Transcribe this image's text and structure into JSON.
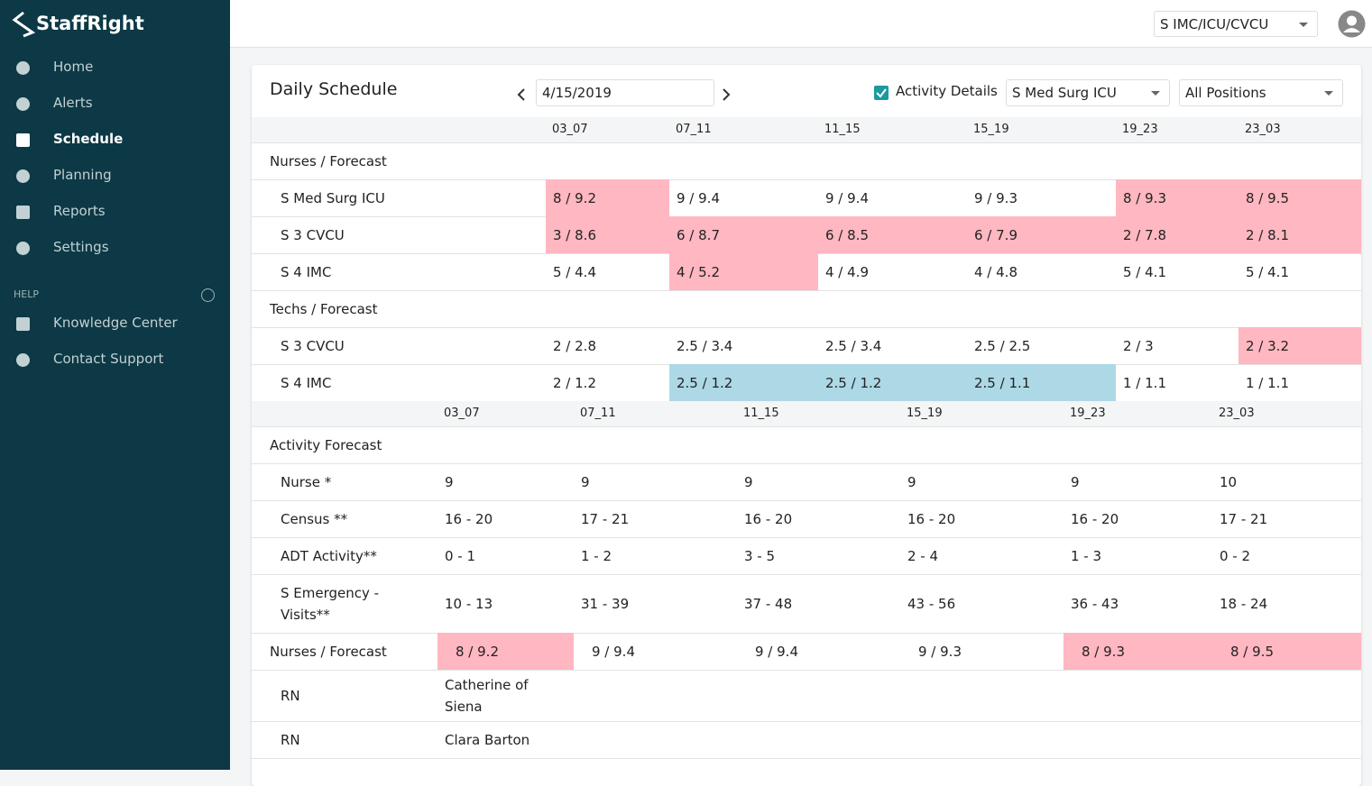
{
  "brand": "StaffRight",
  "nav": [
    "Home",
    "Alerts",
    "Schedule",
    "Planning",
    "Reports",
    "Settings"
  ],
  "help_label": "HELP",
  "help_nav": [
    "Knowledge Center",
    "Contact Support"
  ],
  "unit_select": "S IMC/ICU/CVCU",
  "schedule": {
    "title": "Daily Schedule",
    "date": "4/15/2019",
    "activity_details": "Activity Details",
    "unit_filter": "S Med Surg ICU",
    "position_filter": "All Positions",
    "shift_columns": [
      "03_07",
      "07_11",
      "11_15",
      "15_19",
      "19_23",
      "23_03"
    ],
    "groups": [
      {
        "label": "Nurses / Forecast",
        "rows": [
          {
            "label": "S Med Surg ICU",
            "cells": [
              "8 / 9.2",
              "9 / 9.4",
              "9 / 9.4",
              "9 / 9.3",
              "8 / 9.3",
              "8 / 9.5"
            ],
            "colors": [
              "#ffb7c1",
              null,
              null,
              null,
              "#ffb7c1",
              "#ffb7c1"
            ]
          },
          {
            "label": "S 3 CVCU",
            "cells": [
              "3 / 8.6",
              "6 / 8.7",
              "6 / 8.5",
              "6 / 7.9",
              "2 / 7.8",
              "2 / 8.1"
            ],
            "colors": [
              "#ffb7c1",
              "#ffb7c1",
              "#ffb7c1",
              "#ffb7c1",
              "#ffb7c1",
              "#ffb7c1"
            ]
          },
          {
            "label": "S 4 IMC",
            "cells": [
              "5 / 4.4",
              "4 / 5.2",
              "4 / 4.9",
              "4 / 4.8",
              "5 / 4.1",
              "5 / 4.1"
            ],
            "colors": [
              null,
              "#ffb7c1",
              null,
              null,
              null,
              null
            ]
          }
        ]
      },
      {
        "label": "Techs / Forecast",
        "rows": [
          {
            "label": "S 3 CVCU",
            "cells": [
              "2 / 2.8",
              "2.5 / 3.4",
              "2.5 / 3.4",
              "2.5 / 2.5",
              "2 / 3",
              "2 / 3.2"
            ],
            "colors": [
              null,
              null,
              null,
              null,
              null,
              "#ffb7c1"
            ]
          },
          {
            "label": "S 4 IMC",
            "cells": [
              "2 / 1.2",
              "2.5 / 1.2",
              "2.5 / 1.2",
              "2.5 / 1.1",
              "1 / 1.1",
              "1 / 1.1"
            ],
            "colors": [
              null,
              "#add8e6",
              "#add8e6",
              "#add8e6",
              null,
              null
            ]
          }
        ]
      }
    ],
    "activity": {
      "shift_columns": [
        "03_07",
        "07_11",
        "11_15",
        "15_19",
        "19_23",
        "23_03"
      ],
      "label": "Activity Forecast",
      "rows": [
        {
          "label": "Nurse *",
          "cells": [
            "9",
            "9",
            "9",
            "9",
            "9",
            "10"
          ]
        },
        {
          "label": "Census **",
          "cells": [
            "16 - 20",
            "17 - 21",
            "16 - 20",
            "16 - 20",
            "16 - 20",
            "17 - 21"
          ]
        },
        {
          "label": "ADT Activity**",
          "cells": [
            "0 - 1",
            "1 - 2",
            "3 - 5",
            "2 - 4",
            "1 - 3",
            "0 - 2"
          ]
        },
        {
          "label": "S Emergency - Visits**",
          "cells": [
            "10 - 13",
            "31 - 39",
            "37 - 48",
            "43 - 56",
            "36 - 43",
            "18 - 24"
          ]
        }
      ],
      "summary": {
        "label": "Nurses / Forecast",
        "cells": [
          "8 / 9.2",
          "9 / 9.4",
          "9 / 9.4",
          "9 / 9.3",
          "8 / 9.3",
          "8 / 9.5"
        ],
        "colors": [
          "#ffb7c1",
          null,
          null,
          null,
          "#ffb7c1",
          "#ffb7c1"
        ]
      },
      "staff": [
        {
          "role": "RN",
          "name": "Catherine of Siena"
        },
        {
          "role": "RN",
          "name": "Clara Barton"
        }
      ]
    }
  }
}
